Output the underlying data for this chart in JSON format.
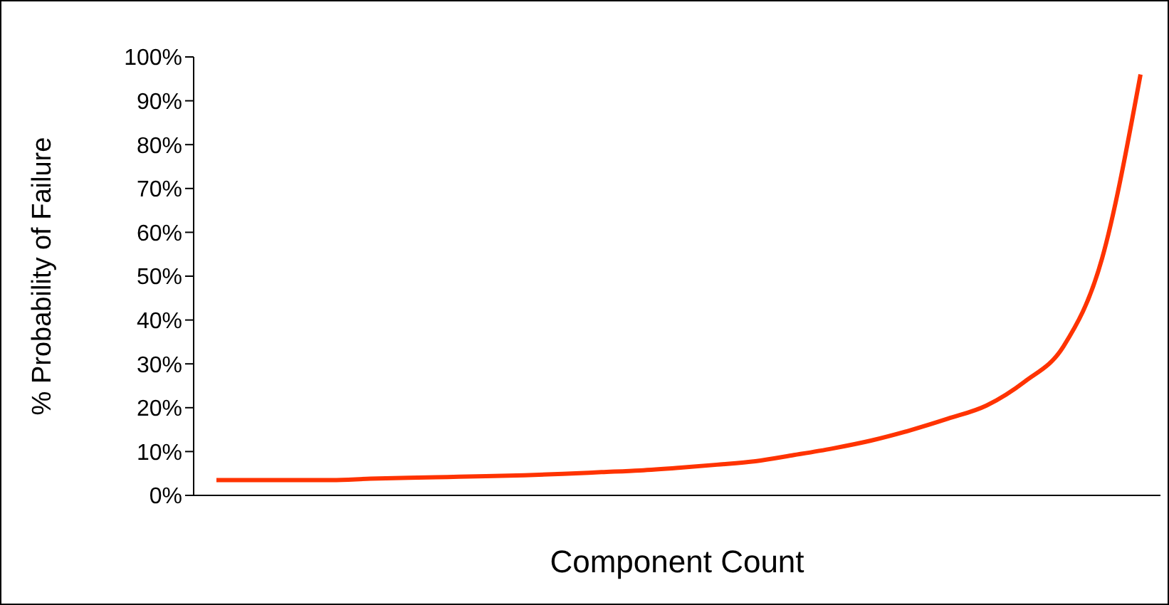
{
  "chart_data": {
    "type": "line",
    "xlabel": "Component Count",
    "ylabel": "% Probability of Failure",
    "categories": [
      null,
      null,
      null,
      null,
      null,
      null,
      null,
      null,
      null,
      null,
      null,
      null,
      null,
      null,
      null,
      null,
      null,
      null,
      null,
      null,
      null,
      null,
      null,
      null,
      null
    ],
    "series": [
      {
        "color": "#ff3300",
        "values": [
          3.5,
          3.5,
          3.5,
          3.5,
          3.8,
          4,
          4.2,
          4.4,
          4.6,
          4.9,
          5.3,
          5.7,
          6.3,
          7,
          7.8,
          9.2,
          10.7,
          12.5,
          14.8,
          17.5,
          20.5,
          26,
          34,
          54,
          96
        ]
      }
    ],
    "ylim": [
      0,
      100
    ],
    "yticks": [
      {
        "value": 0,
        "label": "0%"
      },
      {
        "value": 10,
        "label": "10%"
      },
      {
        "value": 20,
        "label": "20%"
      },
      {
        "value": 30,
        "label": "30%"
      },
      {
        "value": 40,
        "label": "40%"
      },
      {
        "value": 50,
        "label": "50%"
      },
      {
        "value": 60,
        "label": "60%"
      },
      {
        "value": 70,
        "label": "70%"
      },
      {
        "value": 80,
        "label": "80%"
      },
      {
        "value": 90,
        "label": "90%"
      },
      {
        "value": 100,
        "label": "100%"
      }
    ],
    "grid": false,
    "legend": false,
    "marker": "none",
    "line_style": "solid"
  }
}
